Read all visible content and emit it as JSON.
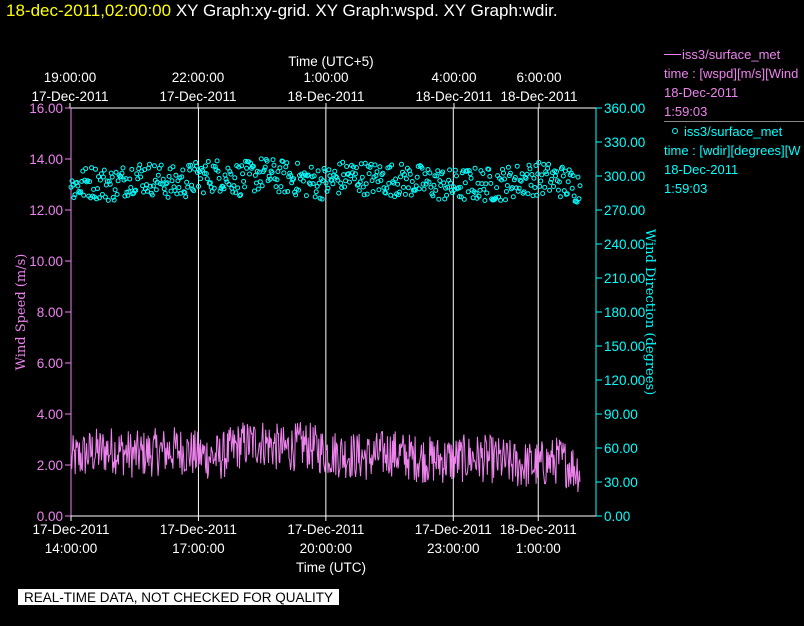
{
  "header": {
    "date": "18-dec-2011,02:00:00",
    "graphs": "XY Graph:xy-grid.  XY Graph:wspd.  XY Graph:wdir."
  },
  "legend": [
    {
      "name": "iss3/surface_met",
      "marker": "line",
      "desc": "time : [wspd][m/s][Wind",
      "date": "18-Dec-2011",
      "time": "1:59:03",
      "color": "#ee82ee"
    },
    {
      "name": "iss3/surface_met",
      "marker": "circle",
      "desc": "time : [wdir][degrees][W",
      "date": "18-Dec-2011",
      "time": "1:59:03",
      "color": "#00ffff"
    }
  ],
  "disclaimer": "REAL-TIME DATA, NOT CHECKED FOR QUALITY",
  "chart_data": {
    "type": "line",
    "top_axis": {
      "title": "Time (UTC+5)",
      "ticks": [
        {
          "time": "19:00:00",
          "date": "17-Dec-2011"
        },
        {
          "time": "22:00:00",
          "date": "17-Dec-2011"
        },
        {
          "time": "1:00:00",
          "date": "18-Dec-2011"
        },
        {
          "time": "4:00:00",
          "date": "18-Dec-2011"
        },
        {
          "time": "6:00:00",
          "date": "18-Dec-2011"
        }
      ]
    },
    "bottom_axis": {
      "title": "Time (UTC)",
      "range": [
        "2011-12-17 14:00",
        "2011-12-18 01:59"
      ],
      "ticks": [
        {
          "date": "17-Dec-2011",
          "time": "14:00:00"
        },
        {
          "date": "17-Dec-2011",
          "time": "17:00:00"
        },
        {
          "date": "17-Dec-2011",
          "time": "20:00:00"
        },
        {
          "date": "17-Dec-2011",
          "time": "23:00:00"
        },
        {
          "date": "18-Dec-2011",
          "time": "1:00:00"
        }
      ],
      "gridlines": [
        "2011-12-17 17:00",
        "2011-12-17 20:00",
        "2011-12-17 23:00",
        "2011-12-18 01:00"
      ]
    },
    "left_axis": {
      "title": "Wind Speed (m/s)",
      "ylim": [
        0,
        16
      ],
      "ticks": [
        "0.00",
        "2.00",
        "4.00",
        "6.00",
        "8.00",
        "10.00",
        "12.00",
        "14.00",
        "16.00"
      ]
    },
    "right_axis": {
      "title": "Wind Direction (degrees)",
      "ylim": [
        0,
        360
      ],
      "ticks": [
        "0.00",
        "30.00",
        "60.00",
        "90.00",
        "120.00",
        "150.00",
        "180.00",
        "210.00",
        "240.00",
        "270.00",
        "300.00",
        "330.00",
        "360.00"
      ]
    },
    "series": [
      {
        "name": "iss3/surface_met",
        "kind": "line",
        "axis": "left",
        "color": "#ee82ee",
        "x": [
          "2011-12-17 14:00",
          "2011-12-17 14:30",
          "2011-12-17 15:00",
          "2011-12-17 15:30",
          "2011-12-17 16:00",
          "2011-12-17 16:30",
          "2011-12-17 17:00",
          "2011-12-17 17:30",
          "2011-12-17 18:00",
          "2011-12-17 18:30",
          "2011-12-17 19:00",
          "2011-12-17 19:30",
          "2011-12-17 20:00",
          "2011-12-17 20:30",
          "2011-12-17 21:00",
          "2011-12-17 21:30",
          "2011-12-17 22:00",
          "2011-12-17 22:30",
          "2011-12-17 23:00",
          "2011-12-17 23:30",
          "2011-12-18 00:00",
          "2011-12-18 00:30",
          "2011-12-18 01:00",
          "2011-12-18 01:30",
          "2011-12-18 01:59"
        ],
        "values": [
          2.2,
          2.5,
          2.6,
          2.4,
          2.5,
          2.6,
          2.4,
          2.3,
          2.8,
          2.9,
          2.6,
          2.8,
          2.5,
          2.4,
          2.3,
          2.5,
          2.3,
          2.2,
          2.2,
          2.3,
          2.2,
          2.0,
          2.0,
          2.2,
          1.8
        ]
      },
      {
        "name": "iss3/surface_met",
        "kind": "scatter",
        "axis": "right",
        "color": "#00ffff",
        "x": [
          "2011-12-17 14:00",
          "2011-12-17 14:30",
          "2011-12-17 15:00",
          "2011-12-17 15:30",
          "2011-12-17 16:00",
          "2011-12-17 16:30",
          "2011-12-17 17:00",
          "2011-12-17 17:30",
          "2011-12-17 18:00",
          "2011-12-17 18:30",
          "2011-12-17 19:00",
          "2011-12-17 19:30",
          "2011-12-17 20:00",
          "2011-12-17 20:30",
          "2011-12-17 21:00",
          "2011-12-17 21:30",
          "2011-12-17 22:00",
          "2011-12-17 22:30",
          "2011-12-17 23:00",
          "2011-12-17 23:30",
          "2011-12-18 00:00",
          "2011-12-18 00:30",
          "2011-12-18 01:00",
          "2011-12-18 01:30",
          "2011-12-18 01:59"
        ],
        "values": [
          290,
          295,
          292,
          300,
          297,
          293,
          299,
          301,
          297,
          302,
          299,
          296,
          294,
          300,
          298,
          297,
          296,
          294,
          291,
          293,
          292,
          296,
          298,
          296,
          290
        ]
      }
    ]
  }
}
